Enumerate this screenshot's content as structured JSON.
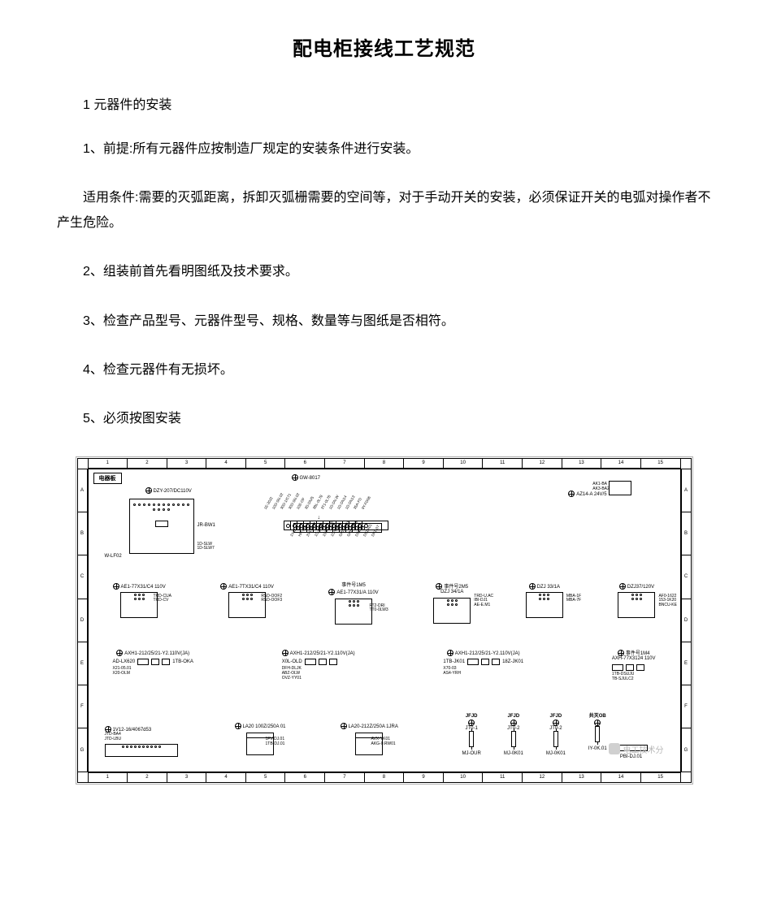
{
  "title": "配电柜接线工艺规范",
  "section1_heading": "1 元器件的安装",
  "paragraphs": {
    "p1": "1、前提:所有元器件应按制造厂规定的安装条件进行安装。",
    "p2": "适用条件:需要的灭弧距离，拆卸灭弧栅需要的空间等，对于手动开关的安装，必须保证开关的电弧对操作者不产生危险。",
    "p3": "2、组装前首先看明图纸及技术要求。",
    "p4": "3、检查产品型号、元器件型号、规格、数量等与图纸是否相符。",
    "p5": "4、检查元器件有无损坏。",
    "p6": "5、必须按图安装"
  },
  "diagram": {
    "frame_label": "电器板",
    "ruler_top": [
      "1",
      "2",
      "3",
      "4",
      "5",
      "6",
      "7",
      "8",
      "9",
      "10",
      "11",
      "12",
      "13",
      "14",
      "15"
    ],
    "ruler_bottom": [
      "1",
      "2",
      "3",
      "4",
      "5",
      "6",
      "7",
      "8",
      "9",
      "10",
      "11",
      "12",
      "13",
      "14",
      "15"
    ],
    "ruler_left": [
      "A",
      "B",
      "C",
      "D",
      "E",
      "F",
      "G"
    ],
    "ruler_right": [
      "A",
      "B",
      "C",
      "D",
      "E",
      "F",
      "G"
    ],
    "components": {
      "top_left_marker": "DZY-207/DC110V",
      "top_center_marker": "GW-8017",
      "top_right_marker": "AZ14-A 24V/5",
      "top_right_box_lines": [
        "AK1-BA",
        "AK3-BA2"
      ],
      "panel_side_label": "JR-BW1",
      "panel_top": "W-LF02",
      "panel_bottom_lines": [
        "1D-SLW",
        "1D-SLW7"
      ],
      "tb_top_labels": [
        "1E-20J2",
        "10D-SN.02",
        "30D-1/C71",
        "30D-SN.02",
        "10E-OF",
        "3D-DN/5",
        "3BL-0L78",
        "3T1-0L78",
        "1D-DN.W",
        "1D-DN14",
        "1D-DN13",
        "35A-FD",
        "9Y-FD06"
      ],
      "tb_bot_labels": [
        "1V12-1",
        "HR-L71",
        "2V1-OLM",
        "1D-G146",
        "10G-G145",
        "1D-G144",
        "GRD-2061",
        "GRD-1063",
        "DSZ-N",
        "DSZX01",
        "DFZ-07"
      ],
      "row2": [
        {
          "title": "AE1-77X31/C4 110V",
          "lines": [
            "TRD-CUA",
            "TRD-CV"
          ]
        },
        {
          "title": "AE1-7TX31/C4 110V",
          "lines": [
            "RSD-OOF2",
            "RSD-OOF3"
          ]
        },
        {
          "title": "AE1-77X31/A 110V",
          "center": "事件号1M5",
          "lines": [
            "FT2-DRI",
            "TT0-0LW3"
          ]
        },
        {
          "title": "事件号2M5",
          "sub": "DZJ 34/1A",
          "lines": [
            "TRD-U.AC",
            "IBI-DJ1",
            "AE-E.M1"
          ]
        },
        {
          "title": "DZJ 33/1A",
          "lines": [
            "MBA-1F",
            "MBA-7F"
          ]
        },
        {
          "title": "DZJ37/120V",
          "lines": [
            "AF0-1622",
            "153-1K20",
            "BNCU-KE"
          ]
        }
      ],
      "row3": [
        {
          "title": "AXH1-212/25/21-Y2.110V(JA)",
          "left": "AD-LX620",
          "lines": [
            "X21-05.01",
            "X20-OLM"
          ],
          "right": "1TB-OKA"
        },
        {
          "title": "AXH1-212/25/21-Y2.110V(JA)",
          "left": "X0L-OLD",
          "lines": [
            "DFH-DLJK",
            "ABZ-OLW",
            "OVZ-YY01"
          ],
          "right": ""
        },
        {
          "title": "AXH1-212/25/21-Y2.110V(JA)",
          "left": "1TB-JK01",
          "lines": [
            "X70-03",
            "AS4-YRH"
          ],
          "right": "18Z-JK01"
        },
        {
          "title": "事件号1M4",
          "sub": "AXH-77X3124 110V",
          "lines": [
            "1TB-DSUJU",
            "TB-SJULC2"
          ]
        }
      ],
      "row4_left": {
        "title": "1V12-16/4067d53",
        "lines": [
          "JTD-BA4",
          "JTD-LBU"
        ]
      },
      "row4_b1": {
        "title": "LA20 100Z/250A 01",
        "lines": [
          "1FV-DJ.01",
          "1TB-DJ.01"
        ]
      },
      "row4_b2": {
        "title": "LA20-212Z/250A 1JRA",
        "lines": [
          "AVX-YK01",
          "AKG-0.RW01"
        ]
      },
      "row4_fuses": [
        {
          "top": "JFJD",
          "mid": "JT0-1",
          "bot": "MJ-OUR"
        },
        {
          "top": "JFJD",
          "mid": "JT0-2",
          "bot": "MJ-0K01"
        },
        {
          "top": "JFJD",
          "mid": "JT0-2",
          "bot": "MJ-0K01"
        },
        {
          "top": "共灭OB",
          "mid": "",
          "bot": "IY-0K.01"
        }
      ],
      "row4_right_block": "PBI-DJ.01"
    }
  },
  "watermark": "电工技术分",
  "colors": {
    "text": "#000000",
    "bg": "#ffffff",
    "border": "#000000",
    "outer_border": "#b0b0b0",
    "watermark": "#b8b8b8"
  }
}
